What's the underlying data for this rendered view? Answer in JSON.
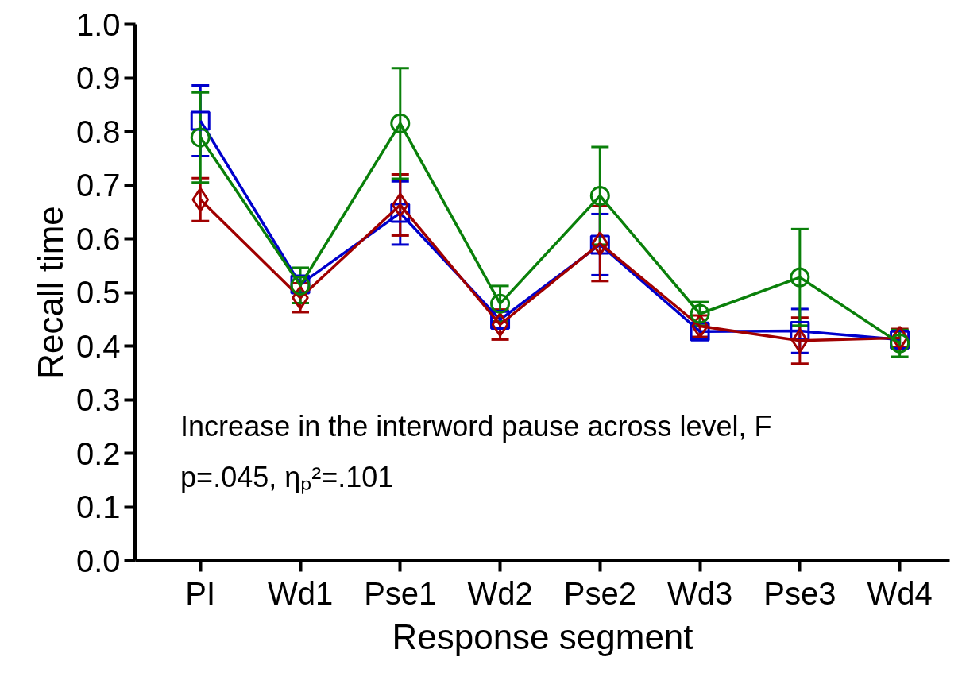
{
  "chart_data": {
    "type": "line",
    "xlabel": "Response segment",
    "ylabel": "Recall time",
    "categories": [
      "PI",
      "Wd1",
      "Pse1",
      "Wd2",
      "Pse2",
      "Wd3",
      "Pse3",
      "Wd4"
    ],
    "series": [
      {
        "color": "#0000cc",
        "marker": "square",
        "values": [
          0.82,
          0.515,
          0.648,
          0.449,
          0.589,
          0.427,
          0.428,
          0.412
        ],
        "errors": [
          0.066,
          0.015,
          0.059,
          0.015,
          0.057,
          0.015,
          0.041,
          0.015
        ]
      },
      {
        "color": "#a00000",
        "marker": "diamond",
        "values": [
          0.673,
          0.49,
          0.663,
          0.44,
          0.591,
          0.437,
          0.41,
          0.415
        ],
        "errors": [
          0.04,
          0.027,
          0.057,
          0.028,
          0.07,
          0.02,
          0.043,
          0.017
        ]
      },
      {
        "color": "#0a800a",
        "marker": "circle",
        "values": [
          0.789,
          0.513,
          0.815,
          0.479,
          0.68,
          0.46,
          0.528,
          0.405
        ],
        "errors": [
          0.084,
          0.033,
          0.103,
          0.033,
          0.091,
          0.022,
          0.09,
          0.025
        ]
      }
    ],
    "ylim": [
      0,
      1
    ],
    "yticks": [
      {
        "value": 0,
        "label": "0.0"
      },
      0.1,
      0.2,
      0.3,
      0.4,
      0.5,
      0.6,
      0.7,
      0.8,
      0.9,
      {
        "value": 1,
        "label": "1.0"
      }
    ],
    "annotations": [
      "Increase in the interword pause across level, F",
      "p=.045, ηₚ²=.101"
    ],
    "line_style": "solid"
  }
}
